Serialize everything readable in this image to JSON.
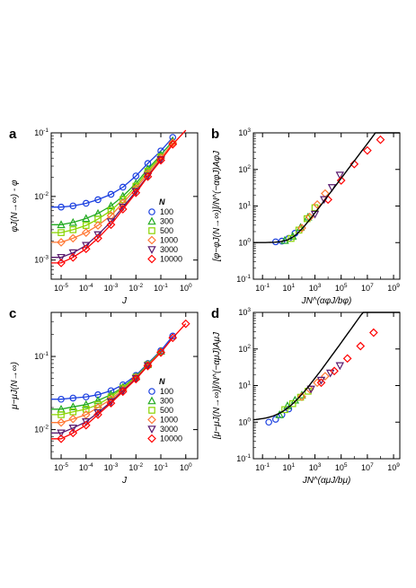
{
  "panels": [
    {
      "letter": "a",
      "ylabel": "φJ(N→∞) - φ",
      "xlabel": "J"
    },
    {
      "letter": "b",
      "ylabel": "[φ−φJ(N→∞)]/N^(−αφJ)AφJ",
      "xlabel": "JN^(αφJ/bφ)"
    },
    {
      "letter": "c",
      "ylabel": "μ−μJ(N→∞)",
      "xlabel": "J"
    },
    {
      "letter": "d",
      "ylabel": "[μ−μJ(N→∞)]/N^(−αμJ)AμJ",
      "xlabel": "JN^(αμJ/bμ)"
    }
  ],
  "legend": {
    "title": "N",
    "entries": [
      {
        "label": "100",
        "color": "#1a3fe0",
        "marker": "circle"
      },
      {
        "label": "300",
        "color": "#22aa22",
        "marker": "triangle-up"
      },
      {
        "label": "500",
        "color": "#8ad400",
        "marker": "square"
      },
      {
        "label": "1000",
        "color": "#ff7733",
        "marker": "diamond"
      },
      {
        "label": "3000",
        "color": "#5a1a6e",
        "marker": "triangle-down"
      },
      {
        "label": "10000",
        "color": "#ff0000",
        "marker": "diamond"
      }
    ]
  },
  "chart_data": [
    {
      "type": "scatter",
      "panel": "a",
      "x_scale": "log",
      "y_scale": "log",
      "xlim": [
        4e-06,
        3
      ],
      "ylim": [
        0.0005,
        0.1
      ],
      "xticks": [
        "10^-5",
        "10^-4",
        "10^-3",
        "10^-2",
        "10^-1",
        "10^0"
      ],
      "yticks": [
        "10^-3",
        "10^-2",
        "10^-1"
      ],
      "series": [
        {
          "name": "100",
          "x": [
            1e-05,
            3e-05,
            0.0001,
            0.0003,
            0.001,
            0.003,
            0.01,
            0.03,
            0.1,
            0.3
          ],
          "y": [
            0.0068,
            0.0071,
            0.0078,
            0.0089,
            0.0108,
            0.014,
            0.021,
            0.033,
            0.052,
            0.085
          ]
        },
        {
          "name": "300",
          "x": [
            1e-05,
            3e-05,
            0.0001,
            0.0003,
            0.001,
            0.003,
            0.01,
            0.03,
            0.1,
            0.3
          ],
          "y": [
            0.0036,
            0.0039,
            0.0045,
            0.0054,
            0.0071,
            0.0101,
            0.016,
            0.027,
            0.045,
            0.075
          ]
        },
        {
          "name": "500",
          "x": [
            1e-05,
            3e-05,
            0.0001,
            0.0003,
            0.001,
            0.003,
            0.01,
            0.03,
            0.1
          ],
          "y": [
            0.0027,
            0.003,
            0.0035,
            0.0044,
            0.006,
            0.0089,
            0.0145,
            0.025,
            0.042
          ]
        },
        {
          "name": "1000",
          "x": [
            1e-05,
            3e-05,
            0.0001,
            0.0003,
            0.001,
            0.003,
            0.01,
            0.03,
            0.1,
            0.3
          ],
          "y": [
            0.0019,
            0.0022,
            0.0027,
            0.0035,
            0.005,
            0.0079,
            0.0133,
            0.023,
            0.04,
            0.07
          ]
        },
        {
          "name": "3000",
          "x": [
            1e-05,
            3e-05,
            0.0001,
            0.0003,
            0.001,
            0.003,
            0.01,
            0.03,
            0.1
          ],
          "y": [
            0.0011,
            0.0013,
            0.0017,
            0.0025,
            0.004,
            0.0068,
            0.012,
            0.021,
            0.038
          ]
        },
        {
          "name": "10000",
          "x": [
            1e-05,
            3e-05,
            0.0001,
            0.0003,
            0.001,
            0.003,
            0.01,
            0.03,
            0.1,
            0.3,
            1
          ],
          "y": [
            0.0009,
            0.0011,
            0.0015,
            0.0022,
            0.0036,
            0.0063,
            0.0114,
            0.0205,
            0.037,
            0.066,
            0.11
          ]
        }
      ],
      "fit_lines": true
    },
    {
      "type": "scatter",
      "panel": "b",
      "x_scale": "log",
      "y_scale": "log",
      "xlim": [
        0.02,
        3000000000
      ],
      "ylim": [
        0.1,
        1000
      ],
      "xticks": [
        "10^-1",
        "10^1",
        "10^3",
        "10^5",
        "10^7",
        "10^9"
      ],
      "yticks": [
        "10^-1",
        "10^0",
        "10^1",
        "10^2",
        "10^3"
      ],
      "series": [
        {
          "name": "100",
          "x": [
            1,
            3,
            10,
            30
          ],
          "y": [
            1.05,
            1.1,
            1.3,
            1.8
          ]
        },
        {
          "name": "300",
          "x": [
            5,
            20,
            80,
            300
          ],
          "y": [
            1.15,
            1.5,
            2.6,
            5
          ]
        },
        {
          "name": "500",
          "x": [
            15,
            60,
            250,
            1000
          ],
          "y": [
            1.3,
            2.2,
            4.5,
            9
          ]
        },
        {
          "name": "1000",
          "x": [
            100,
            400,
            1500,
            6000
          ],
          "y": [
            2.5,
            5,
            11,
            22
          ]
        },
        {
          "name": "3000",
          "x": [
            1000,
            5000,
            20000,
            80000
          ],
          "y": [
            6,
            15,
            32,
            70
          ]
        },
        {
          "name": "10000",
          "x": [
            10000,
            100000,
            1000000,
            10000000,
            100000000
          ],
          "y": [
            15,
            50,
            140,
            330,
            650
          ]
        }
      ],
      "fit_lines": true
    },
    {
      "type": "scatter",
      "panel": "c",
      "x_scale": "log",
      "y_scale": "log",
      "xlim": [
        4e-06,
        3
      ],
      "ylim": [
        0.004,
        0.4
      ],
      "xticks": [
        "10^-5",
        "10^-4",
        "10^-3",
        "10^-2",
        "10^-1",
        "10^0"
      ],
      "yticks": [
        "10^-2",
        "10^-1"
      ],
      "series": [
        {
          "name": "100",
          "x": [
            1e-05,
            3e-05,
            0.0001,
            0.0003,
            0.001,
            0.003,
            0.01,
            0.03,
            0.1,
            0.3
          ],
          "y": [
            0.026,
            0.027,
            0.028,
            0.03,
            0.034,
            0.041,
            0.055,
            0.08,
            0.12,
            0.19
          ]
        },
        {
          "name": "300",
          "x": [
            1e-05,
            3e-05,
            0.0001,
            0.0003,
            0.001,
            0.003,
            0.01,
            0.03,
            0.1
          ],
          "y": [
            0.019,
            0.0205,
            0.022,
            0.025,
            0.03,
            0.038,
            0.053,
            0.078,
            0.118
          ]
        },
        {
          "name": "500",
          "x": [
            1e-05,
            3e-05,
            0.0001,
            0.0003,
            0.001,
            0.003,
            0.01,
            0.03
          ],
          "y": [
            0.016,
            0.0175,
            0.019,
            0.022,
            0.028,
            0.037,
            0.052,
            0.077
          ]
        },
        {
          "name": "1000",
          "x": [
            1e-05,
            3e-05,
            0.0001,
            0.0003,
            0.001,
            0.003,
            0.01,
            0.03,
            0.1
          ],
          "y": [
            0.0125,
            0.014,
            0.016,
            0.02,
            0.026,
            0.035,
            0.051,
            0.076,
            0.115
          ]
        },
        {
          "name": "3000",
          "x": [
            1e-05,
            3e-05,
            0.0001,
            0.0003,
            0.001,
            0.003,
            0.01,
            0.03
          ],
          "y": [
            0.009,
            0.0105,
            0.0128,
            0.017,
            0.024,
            0.034,
            0.05,
            0.075
          ]
        },
        {
          "name": "10000",
          "x": [
            1e-05,
            3e-05,
            0.0001,
            0.0003,
            0.001,
            0.003,
            0.01,
            0.03,
            0.1,
            0.3,
            1
          ],
          "y": [
            0.0075,
            0.009,
            0.0115,
            0.016,
            0.023,
            0.033,
            0.049,
            0.074,
            0.113,
            0.18,
            0.28
          ]
        }
      ],
      "fit_lines": true
    },
    {
      "type": "scatter",
      "panel": "d",
      "x_scale": "log",
      "y_scale": "log",
      "xlim": [
        0.02,
        3000000000
      ],
      "ylim": [
        0.1,
        1000
      ],
      "xticks": [
        "10^-1",
        "10^1",
        "10^3",
        "10^5",
        "10^7",
        "10^9"
      ],
      "yticks": [
        "10^-1",
        "10^0",
        "10^1",
        "10^2",
        "10^3"
      ],
      "series": [
        {
          "name": "100",
          "x": [
            0.3,
            1,
            3,
            10
          ],
          "y": [
            1.0,
            1.2,
            1.6,
            2.3
          ]
        },
        {
          "name": "300",
          "x": [
            2,
            8,
            30,
            100
          ],
          "y": [
            1.6,
            2.8,
            4,
            5.5
          ]
        },
        {
          "name": "500",
          "x": [
            5,
            20,
            80,
            300
          ],
          "y": [
            2.2,
            3.2,
            4.8,
            7
          ]
        },
        {
          "name": "1000",
          "x": [
            100,
            400,
            1500,
            6000
          ],
          "y": [
            5,
            8,
            12,
            18
          ]
        },
        {
          "name": "3000",
          "x": [
            500,
            3000,
            15000,
            80000
          ],
          "y": [
            8,
            14,
            22,
            35
          ]
        },
        {
          "name": "10000",
          "x": [
            3000,
            30000,
            300000,
            3000000,
            30000000
          ],
          "y": [
            12,
            25,
            55,
            120,
            280
          ]
        }
      ],
      "fit_lines": true
    }
  ]
}
